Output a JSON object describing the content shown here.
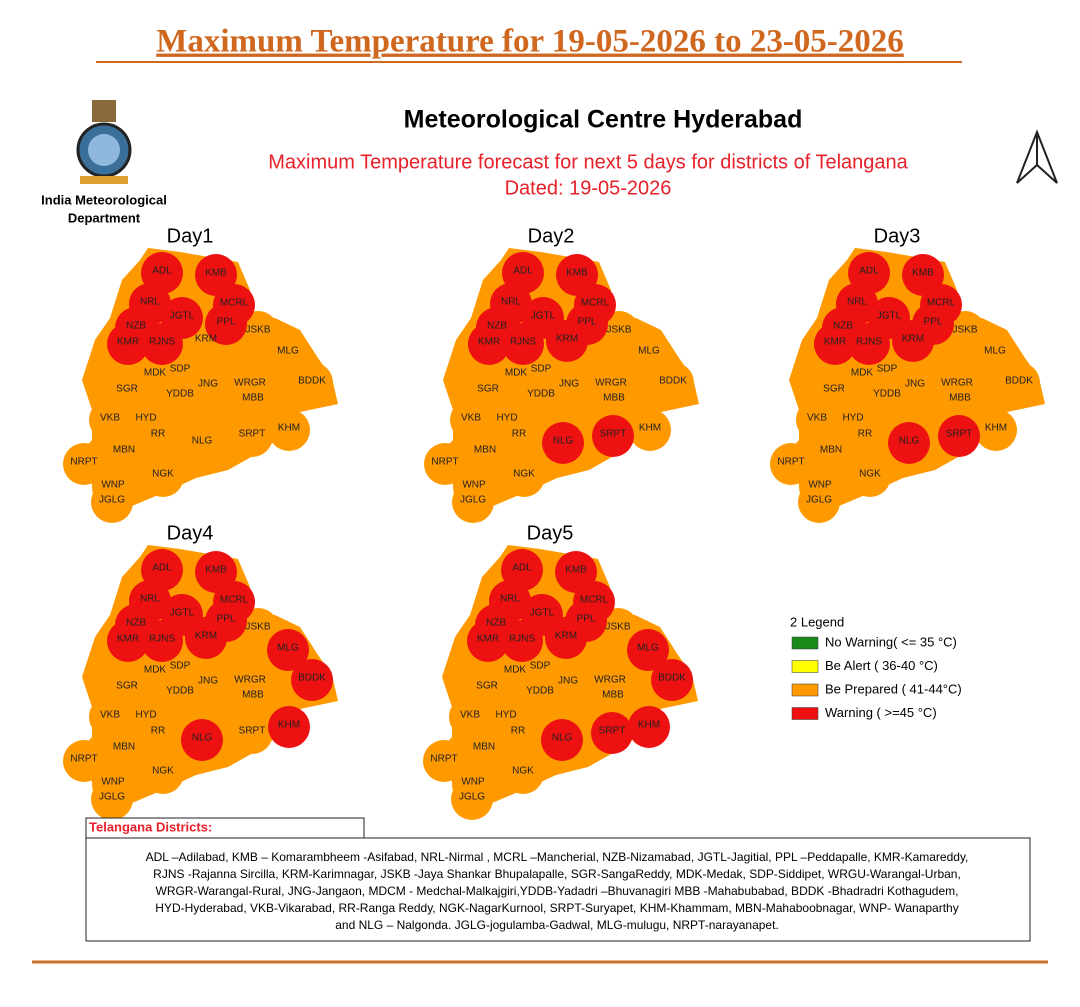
{
  "header": {
    "title": "Maximum Temperature for 19-05-2026 to 23-05-2026"
  },
  "org": {
    "line1": "India Meteorological",
    "line2": "Department"
  },
  "map_title": "Meteorological Centre Hyderabad",
  "subtitle": "Maximum Temperature forecast for next 5 days for districts of Telangana",
  "dated": "Dated: 19-05-2026",
  "legend": {
    "title": "2 Legend",
    "items": [
      {
        "label": "No Warning( <= 35 °C)",
        "color": "#1a8a1a"
      },
      {
        "label": "Be Alert (  36-40 °C)",
        "color": "#ffff00"
      },
      {
        "label": "Be Prepared (  41-44°C)",
        "color": "#ff9900"
      },
      {
        "label": "Warning (  >=45 °C)",
        "color": "#ee1111"
      }
    ]
  },
  "districts": [
    "ADL",
    "KMB",
    "NRL",
    "MCRL",
    "NZB",
    "JGTL",
    "PPL",
    "KMR",
    "RJNS",
    "KRM",
    "JSKB",
    "MLG",
    "MDK",
    "SDP",
    "SGR",
    "JNG",
    "WRGR",
    "BDDK",
    "YDDB",
    "MBB",
    "VKB",
    "HYD",
    "RR",
    "SRPT",
    "KHM",
    "NLG",
    "NRPT",
    "MBN",
    "NGK",
    "WNP",
    "JGLG"
  ],
  "days": [
    {
      "label": "Day1",
      "levels": [
        3,
        3,
        3,
        3,
        3,
        3,
        3,
        3,
        3,
        2,
        2,
        2,
        2,
        2,
        2,
        2,
        2,
        2,
        2,
        2,
        2,
        2,
        2,
        2,
        2,
        2,
        2,
        2,
        2,
        2,
        2
      ]
    },
    {
      "label": "Day2",
      "levels": [
        3,
        3,
        3,
        3,
        3,
        3,
        3,
        3,
        3,
        3,
        2,
        2,
        2,
        2,
        2,
        2,
        2,
        2,
        2,
        2,
        2,
        2,
        2,
        3,
        2,
        3,
        2,
        2,
        2,
        2,
        2
      ]
    },
    {
      "label": "Day3",
      "levels": [
        3,
        3,
        3,
        3,
        3,
        3,
        3,
        3,
        3,
        3,
        2,
        2,
        2,
        2,
        2,
        2,
        2,
        2,
        2,
        2,
        2,
        2,
        2,
        3,
        2,
        3,
        2,
        2,
        2,
        2,
        2
      ]
    },
    {
      "label": "Day4",
      "levels": [
        3,
        3,
        3,
        3,
        3,
        3,
        3,
        3,
        3,
        3,
        2,
        3,
        2,
        2,
        2,
        2,
        2,
        3,
        2,
        2,
        2,
        2,
        2,
        2,
        3,
        3,
        2,
        2,
        2,
        2,
        2
      ]
    },
    {
      "label": "Day5",
      "levels": [
        3,
        3,
        3,
        3,
        3,
        3,
        3,
        3,
        3,
        3,
        2,
        3,
        2,
        2,
        2,
        2,
        2,
        3,
        2,
        2,
        2,
        2,
        2,
        3,
        3,
        3,
        2,
        2,
        2,
        2,
        2
      ]
    }
  ],
  "key": {
    "title": "Telangana Districts:",
    "lines": [
      "ADL –Adilabad, KMB – Komarambheem -Asifabad, NRL-Nirmal , MCRL –Mancherial, NZB-Nizamabad, JGTL-Jagitial, PPL –Peddapalle, KMR-Kamareddy,",
      "RJNS -Rajanna Sircilla, KRM-Karimnagar, JSKB -Jaya Shankar Bhupalapalle, SGR-SangaReddy, MDK-Medak, SDP-Siddipet, WRGU-Warangal-Urban,",
      "WRGR-Warangal-Rural, JNG-Jangaon, MDCM - Medchal-Malkajgiri,YDDB-Yadadri –Bhuvanagiri MBB -Mahabubabad, BDDK -Bhadradri Kothagudem,",
      "HYD-Hyderabad, VKB-Vikarabad, RR-Ranga Reddy, NGK-NagarKurnool, SRPT-Suryapet, KHM-Khammam, MBN-Mahaboobnagar, WNP- Wanaparthy",
      "and NLG – Nalgonda. JGLG-jogulamba-Gadwal, MLG-mulugu, NRPT-narayanapet."
    ]
  }
}
